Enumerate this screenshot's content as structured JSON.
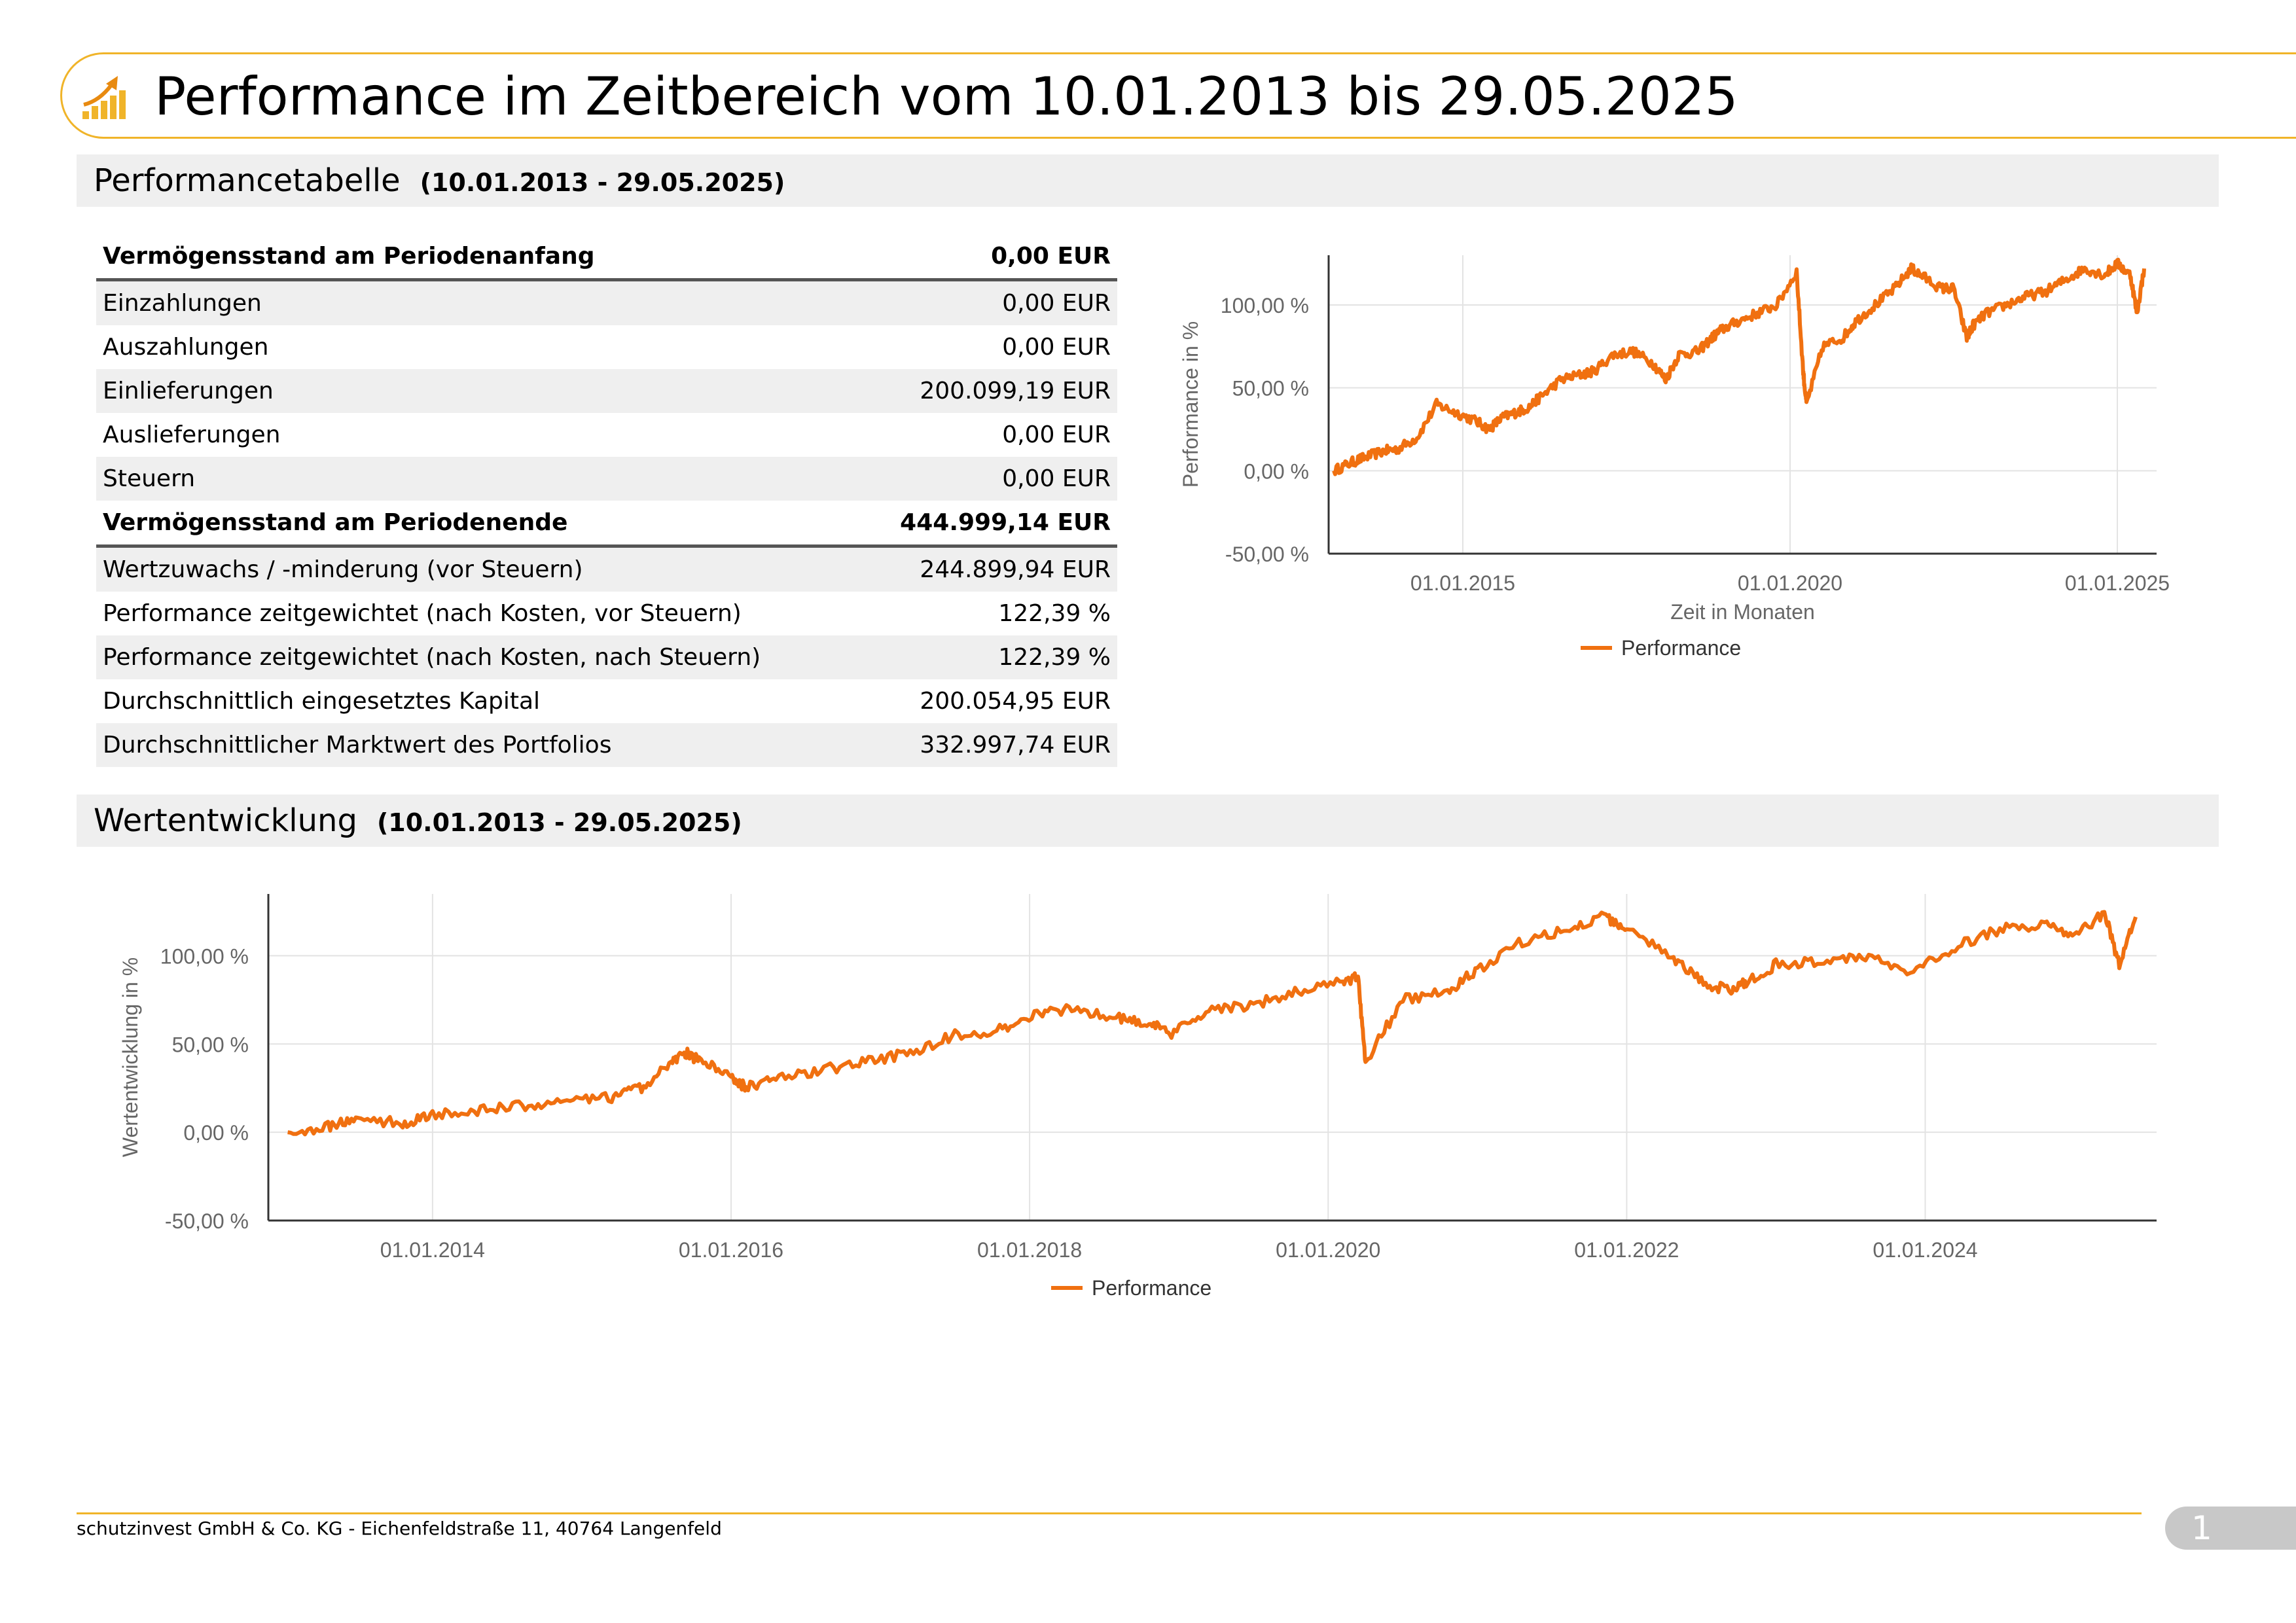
{
  "header": {
    "title": "Performance im Zeitbereich vom 10.01.2013 bis 29.05.2025",
    "icon": "rising-chart-icon",
    "accent_color": "#f0b429"
  },
  "section1": {
    "title": "Performancetabelle",
    "range": "(10.01.2013 - 29.05.2025)"
  },
  "section2": {
    "title": "Wertentwicklung",
    "range": "(10.01.2013 - 29.05.2025)"
  },
  "table": {
    "rows": [
      {
        "label": "Vermögensstand am Periodenanfang",
        "value": "0,00 EUR",
        "bold": true
      },
      {
        "label": "Einzahlungen",
        "value": "0,00 EUR"
      },
      {
        "label": "Auszahlungen",
        "value": "0,00 EUR"
      },
      {
        "label": "Einlieferungen",
        "value": "200.099,19 EUR"
      },
      {
        "label": "Auslieferungen",
        "value": "0,00 EUR"
      },
      {
        "label": "Steuern",
        "value": "0,00 EUR"
      },
      {
        "label": "Vermögensstand am Periodenende",
        "value": "444.999,14 EUR",
        "bold": true
      },
      {
        "label": "Wertzuwachs / -minderung (vor Steuern)",
        "value": "244.899,94 EUR"
      },
      {
        "label": "Performance zeitgewichtet (nach Kosten, vor Steuern)",
        "value": "122,39 %"
      },
      {
        "label": "Performance zeitgewichtet (nach Kosten, nach Steuern)",
        "value": "122,39 %"
      },
      {
        "label": "Durchschnittlich eingesetztes Kapital",
        "value": "200.054,95 EUR"
      },
      {
        "label": "Durchschnittlicher Marktwert des Portfolios",
        "value": "332.997,74 EUR"
      }
    ]
  },
  "chart_data": [
    {
      "type": "line",
      "ylabel": "Performance in %",
      "xlabel": "Zeit in Monaten",
      "ylim": [
        -50,
        130
      ],
      "xlim": [
        2012.95,
        2025.6
      ],
      "y_ticks": [
        -50,
        0,
        50,
        100
      ],
      "y_tick_labels": [
        "-50,00 %",
        "0,00 %",
        "50,00 %",
        "100,00 %"
      ],
      "x_ticks": [
        2015,
        2020,
        2025
      ],
      "x_tick_labels": [
        "01.01.2015",
        "01.01.2020",
        "01.01.2025"
      ],
      "grid": true,
      "legend": "bottom-center",
      "series": [
        {
          "name": "Performance",
          "color": "#f07010",
          "x": [
            2013.03,
            2013.3,
            2013.5,
            2013.8,
            2014.0,
            2014.3,
            2014.6,
            2014.9,
            2015.2,
            2015.4,
            2015.6,
            2015.8,
            2016.0,
            2016.2,
            2016.5,
            2016.8,
            2017.0,
            2017.3,
            2017.6,
            2017.9,
            2018.1,
            2018.3,
            2018.6,
            2018.8,
            2018.95,
            2019.2,
            2019.5,
            2019.8,
            2020.1,
            2020.2,
            2020.25,
            2020.5,
            2020.8,
            2021.0,
            2021.3,
            2021.6,
            2021.85,
            2022.0,
            2022.3,
            2022.5,
            2022.7,
            2022.8,
            2023.0,
            2023.3,
            2023.6,
            2023.9,
            2024.2,
            2024.5,
            2024.8,
            2025.0,
            2025.2,
            2025.3,
            2025.41
          ],
          "y": [
            0,
            5,
            8,
            12,
            13,
            20,
            40,
            35,
            30,
            25,
            32,
            35,
            38,
            45,
            55,
            58,
            60,
            70,
            72,
            65,
            55,
            70,
            72,
            80,
            85,
            90,
            95,
            100,
            120,
            60,
            40,
            75,
            80,
            90,
            100,
            110,
            122,
            118,
            110,
            110,
            80,
            88,
            95,
            100,
            105,
            108,
            115,
            122,
            118,
            125,
            118,
            95,
            122
          ]
        }
      ]
    },
    {
      "type": "line",
      "ylabel": "Wertentwicklung in %",
      "xlabel": "",
      "ylim": [
        -50,
        135
      ],
      "xlim": [
        2012.9,
        2025.55
      ],
      "y_ticks": [
        -50,
        0,
        50,
        100
      ],
      "y_tick_labels": [
        "-50,00 %",
        "0,00 %",
        "50,00 %",
        "100,00 %"
      ],
      "x_ticks": [
        2014,
        2016,
        2018,
        2020,
        2022,
        2024
      ],
      "x_tick_labels": [
        "01.01.2014",
        "01.01.2016",
        "01.01.2018",
        "01.01.2020",
        "01.01.2022",
        "01.01.2024"
      ],
      "grid": true,
      "legend": "bottom-center",
      "series": [
        {
          "name": "Performance",
          "color": "#f07010",
          "x": [
            2013.03,
            2013.3,
            2013.5,
            2013.8,
            2014.0,
            2014.3,
            2014.6,
            2014.9,
            2015.2,
            2015.4,
            2015.6,
            2015.7,
            2015.8,
            2016.0,
            2016.1,
            2016.3,
            2016.6,
            2016.9,
            2017.2,
            2017.5,
            2017.8,
            2018.05,
            2018.3,
            2018.6,
            2018.8,
            2018.95,
            2019.2,
            2019.5,
            2019.8,
            2020.1,
            2020.2,
            2020.25,
            2020.5,
            2020.8,
            2021.0,
            2021.3,
            2021.6,
            2021.85,
            2022.0,
            2022.3,
            2022.5,
            2022.7,
            2022.8,
            2023.0,
            2023.3,
            2023.6,
            2023.9,
            2024.2,
            2024.5,
            2024.8,
            2025.0,
            2025.2,
            2025.3,
            2025.41
          ],
          "y": [
            0,
            3,
            8,
            5,
            10,
            12,
            15,
            17,
            20,
            25,
            40,
            45,
            40,
            32,
            25,
            30,
            35,
            40,
            45,
            55,
            58,
            68,
            70,
            65,
            62,
            55,
            70,
            72,
            80,
            85,
            88,
            40,
            75,
            80,
            92,
            108,
            115,
            122,
            115,
            100,
            85,
            80,
            85,
            95,
            97,
            100,
            90,
            105,
            115,
            118,
            110,
            125,
            95,
            122
          ]
        }
      ]
    }
  ],
  "footer": {
    "address": "schutzinvest GmbH & Co. KG - Eichenfeldstraße 11, 40764 Langenfeld",
    "page": "1"
  }
}
